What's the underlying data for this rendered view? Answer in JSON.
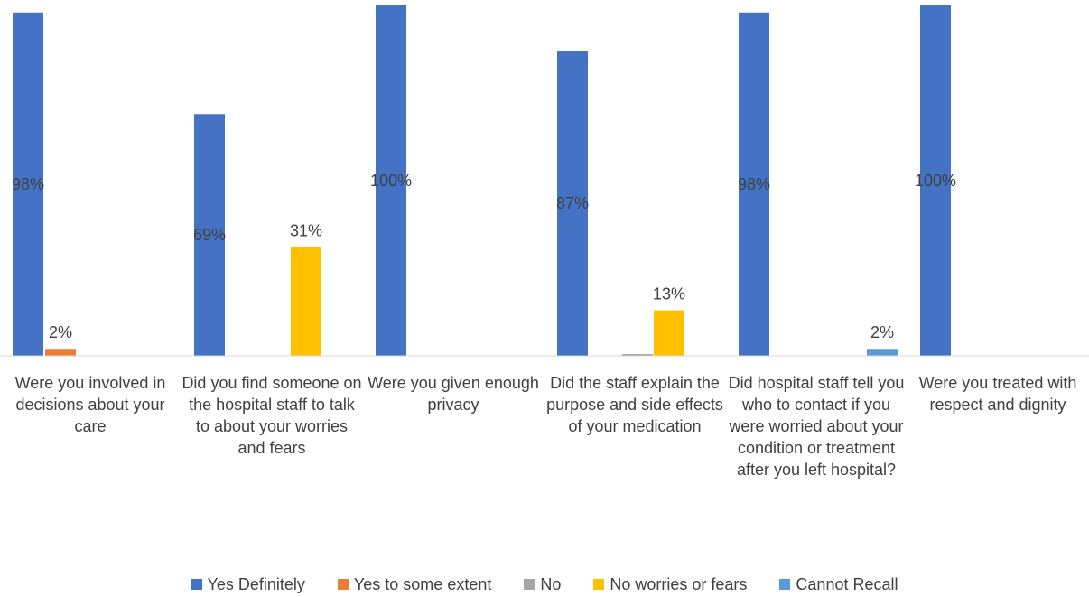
{
  "chart_data": {
    "type": "bar",
    "categories": [
      "Were you involved in decisions about your care",
      "Did you find someone on the hospital staff to talk to about your worries and fears",
      "Were you given enough privacy",
      "Did the staff explain the purpose and side effects of your medication",
      "Did hospital staff tell you who to contact if you were worried about your condition or treatment after you left hospital?",
      "Were you treated with respect and dignity"
    ],
    "series": [
      {
        "name": "Yes Definitely",
        "color": "#4472C4",
        "values": [
          98,
          69,
          100,
          87,
          98,
          100
        ],
        "labels": [
          "98%",
          "69%",
          "100%",
          "87%",
          "98%",
          "100%"
        ]
      },
      {
        "name": "Yes to some extent",
        "color": "#ED7D31",
        "values": [
          2,
          0,
          0,
          0,
          0,
          0
        ],
        "labels": [
          "2%",
          "",
          "",
          "",
          "",
          ""
        ]
      },
      {
        "name": "No",
        "color": "#A5A5A5",
        "values": [
          0,
          0,
          0,
          0.5,
          0,
          0
        ],
        "labels": [
          "",
          "",
          "",
          "",
          "",
          ""
        ]
      },
      {
        "name": "No worries or fears",
        "color": "#FFC000",
        "values": [
          0,
          31,
          0,
          13,
          0,
          0
        ],
        "labels": [
          "",
          "31%",
          "",
          "13%",
          "",
          ""
        ]
      },
      {
        "name": "Cannot Recall",
        "color": "#5B9BD5",
        "values": [
          0,
          0,
          0,
          0,
          2,
          0
        ],
        "labels": [
          "",
          "",
          "",
          "",
          "2%",
          ""
        ]
      }
    ],
    "ylim": [
      0,
      100
    ],
    "grid": false,
    "legend_position": "bottom"
  }
}
